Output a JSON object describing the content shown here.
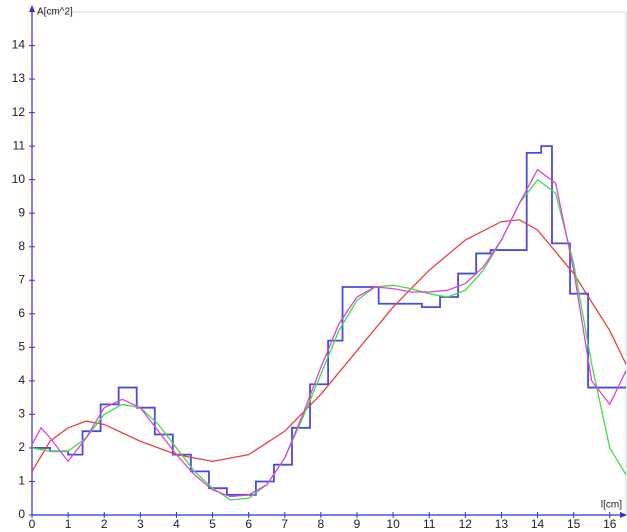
{
  "chart_data": {
    "type": "line",
    "y_label": "A[cm^2]",
    "x_label": "l[cm]",
    "xlim": [
      0,
      16.45
    ],
    "ylim": [
      0,
      15
    ],
    "xticks": [
      0,
      1,
      2,
      3,
      4,
      5,
      6,
      7,
      8,
      9,
      10,
      11,
      12,
      13,
      14,
      15,
      16
    ],
    "yticks": [
      0,
      1,
      2,
      3,
      4,
      5,
      6,
      7,
      8,
      9,
      10,
      11,
      12,
      13,
      14
    ],
    "series": [
      {
        "color": "#4a4ae0",
        "step": true,
        "x": [
          0,
          0.5,
          1.0,
          1.4,
          1.9,
          2.4,
          2.9,
          3.4,
          3.9,
          4.4,
          4.9,
          5.4,
          6.2,
          6.7,
          7.2,
          7.7,
          8.2,
          8.6,
          9.6,
          10.8,
          11.3,
          11.8,
          12.3,
          12.7,
          13.7,
          14.1,
          14.4,
          14.9,
          15.4,
          16.45
        ],
        "values": [
          2.0,
          1.9,
          1.8,
          2.5,
          3.3,
          3.8,
          3.2,
          2.4,
          1.8,
          1.3,
          0.8,
          0.6,
          1.0,
          1.5,
          2.6,
          3.9,
          5.2,
          6.8,
          6.3,
          6.2,
          6.5,
          7.2,
          7.8,
          7.9,
          10.8,
          11.0,
          8.1,
          6.6,
          3.8,
          3.8
        ]
      },
      {
        "color": "#e84040",
        "x": [
          0,
          0.5,
          1,
          1.5,
          2,
          3,
          4,
          5,
          6,
          7,
          8,
          9,
          10,
          11,
          12,
          13,
          13.5,
          14,
          15,
          16,
          16.45
        ],
        "values": [
          1.3,
          2.2,
          2.6,
          2.8,
          2.7,
          2.2,
          1.8,
          1.6,
          1.8,
          2.5,
          3.6,
          4.9,
          6.2,
          7.3,
          8.2,
          8.75,
          8.8,
          8.5,
          7.2,
          5.5,
          4.5
        ]
      },
      {
        "color": "#40e040",
        "x": [
          0,
          0.5,
          1,
          1.5,
          2,
          2.5,
          3,
          3.5,
          4,
          4.5,
          5,
          5.5,
          6,
          6.5,
          7,
          7.5,
          8,
          8.5,
          9,
          9.5,
          10,
          10.5,
          11,
          11.5,
          12,
          12.5,
          13,
          13.5,
          14,
          14.5,
          15,
          15.5,
          16,
          16.45
        ],
        "values": [
          2.0,
          1.9,
          1.9,
          2.3,
          3.0,
          3.3,
          3.2,
          2.7,
          2.0,
          1.3,
          0.8,
          0.45,
          0.5,
          0.9,
          1.7,
          2.9,
          4.2,
          5.5,
          6.4,
          6.8,
          6.85,
          6.75,
          6.6,
          6.5,
          6.7,
          7.3,
          8.2,
          9.3,
          10.0,
          9.6,
          7.5,
          4.5,
          2.0,
          1.2
        ]
      },
      {
        "color": "#e040e0",
        "x": [
          0,
          0.25,
          0.5,
          1,
          1.5,
          2,
          2.5,
          3,
          3.5,
          4,
          4.5,
          5,
          5.5,
          6,
          6.5,
          7,
          7.5,
          8,
          8.5,
          9,
          9.5,
          10,
          10.5,
          11,
          11.5,
          12,
          12.5,
          13,
          13.5,
          14,
          14.5,
          15,
          15.5,
          16,
          16.45
        ],
        "values": [
          2.1,
          2.6,
          2.3,
          1.6,
          2.3,
          3.2,
          3.45,
          3.2,
          2.5,
          1.8,
          1.2,
          0.75,
          0.55,
          0.6,
          0.9,
          1.7,
          3.0,
          4.4,
          5.7,
          6.5,
          6.8,
          6.75,
          6.65,
          6.65,
          6.7,
          6.9,
          7.4,
          8.2,
          9.3,
          10.3,
          9.9,
          7.3,
          4.0,
          3.3,
          4.3
        ]
      }
    ]
  }
}
